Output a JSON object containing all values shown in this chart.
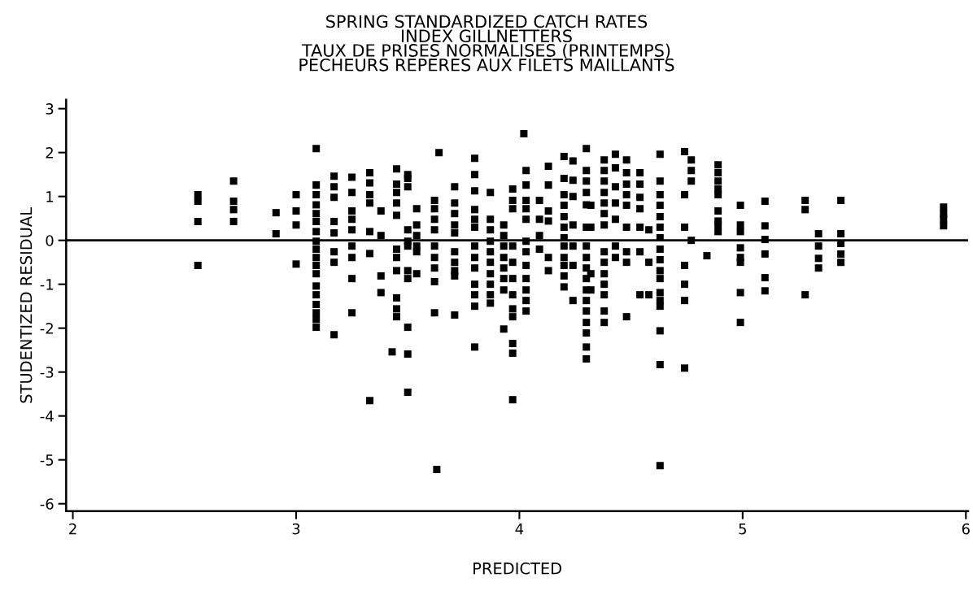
{
  "chart_data": {
    "type": "scatter",
    "title": "SPRING STANDARDIZED CATCH RATES\nINDEX GILLNETTERS\nTAUX DE PRISES NORMALISES (PRINTEMPS)\nPECHEURS REPERES AUX FILETS MAILLANTS",
    "xlabel": "PREDICTED",
    "ylabel": "STUDENTIZED RESIDUAL",
    "xlim": [
      1.97,
      6.01
    ],
    "xticks": [
      2,
      3,
      4,
      5,
      6
    ],
    "ylim": [
      -6.17,
      3.2
    ],
    "yticks": [
      -6,
      -5,
      -4,
      -3,
      -2,
      -1,
      0,
      1,
      2,
      3
    ],
    "grid": false,
    "marker": "square",
    "ref_lines": [
      {
        "axis": "y",
        "value": 0,
        "color": "#000000",
        "line_style": "solid"
      }
    ],
    "series": [
      {
        "color": "#000000",
        "x": [
          2.56,
          2.56,
          2.56,
          2.56,
          2.72,
          2.72,
          2.72,
          2.72,
          2.91,
          2.91,
          3.0,
          3.0,
          3.0,
          3.0,
          3.09,
          3.09,
          3.09,
          3.09,
          3.09,
          3.09,
          3.09,
          3.09,
          3.09,
          3.09,
          3.09,
          3.09,
          3.09,
          3.09,
          3.09,
          3.09,
          3.09,
          3.09,
          3.17,
          3.17,
          3.17,
          3.17,
          3.17,
          3.17,
          3.17,
          3.17,
          3.25,
          3.25,
          3.25,
          3.25,
          3.25,
          3.25,
          3.25,
          3.25,
          3.25,
          3.33,
          3.33,
          3.33,
          3.33,
          3.33,
          3.33,
          3.33,
          3.38,
          3.38,
          3.38,
          3.38,
          3.43,
          3.45,
          3.45,
          3.45,
          3.45,
          3.45,
          3.45,
          3.45,
          3.45,
          3.45,
          3.45,
          3.45,
          3.5,
          3.5,
          3.5,
          3.5,
          3.5,
          3.5,
          3.5,
          3.5,
          3.5,
          3.5,
          3.5,
          3.54,
          3.54,
          3.54,
          3.54,
          3.54,
          3.54,
          3.62,
          3.62,
          3.62,
          3.62,
          3.62,
          3.62,
          3.62,
          3.62,
          3.62,
          3.64,
          3.63,
          3.71,
          3.71,
          3.71,
          3.71,
          3.71,
          3.71,
          3.71,
          3.71,
          3.71,
          3.71,
          3.8,
          3.8,
          3.8,
          3.8,
          3.8,
          3.8,
          3.8,
          3.8,
          3.8,
          3.8,
          3.8,
          3.8,
          3.8,
          3.87,
          3.87,
          3.87,
          3.87,
          3.87,
          3.87,
          3.87,
          3.87,
          3.87,
          3.87,
          3.93,
          3.93,
          3.93,
          3.93,
          3.93,
          3.93,
          3.93,
          3.93,
          3.97,
          3.97,
          3.97,
          3.97,
          3.97,
          3.97,
          3.97,
          3.97,
          3.97,
          3.97,
          3.97,
          3.97,
          4.02,
          4.03,
          4.03,
          4.03,
          4.03,
          4.03,
          4.03,
          4.03,
          4.03,
          4.03,
          4.03,
          4.03,
          4.03,
          4.09,
          4.09,
          4.09,
          4.09,
          4.13,
          4.13,
          4.13,
          4.13,
          4.13,
          4.13,
          4.2,
          4.2,
          4.2,
          4.2,
          4.2,
          4.2,
          4.2,
          4.2,
          4.2,
          4.2,
          4.2,
          4.2,
          4.24,
          4.24,
          4.24,
          4.24,
          4.24,
          4.24,
          4.24,
          4.3,
          4.3,
          4.3,
          4.3,
          4.3,
          4.3,
          4.3,
          4.3,
          4.3,
          4.3,
          4.3,
          4.3,
          4.3,
          4.3,
          4.3,
          4.3,
          4.3,
          4.32,
          4.32,
          4.32,
          4.32,
          4.38,
          4.38,
          4.38,
          4.38,
          4.38,
          4.38,
          4.38,
          4.38,
          4.38,
          4.38,
          4.38,
          4.38,
          4.38,
          4.38,
          4.43,
          4.43,
          4.43,
          4.43,
          4.43,
          4.43,
          4.43,
          4.48,
          4.48,
          4.48,
          4.48,
          4.48,
          4.48,
          4.48,
          4.48,
          4.48,
          4.54,
          4.54,
          4.54,
          4.54,
          4.54,
          4.54,
          4.54,
          4.58,
          4.58,
          4.58,
          4.63,
          4.63,
          4.63,
          4.63,
          4.63,
          4.63,
          4.63,
          4.63,
          4.63,
          4.63,
          4.63,
          4.63,
          4.63,
          4.63,
          4.63,
          4.63,
          4.63,
          4.74,
          4.74,
          4.74,
          4.74,
          4.74,
          4.74,
          4.74,
          4.77,
          4.77,
          4.77,
          4.77,
          4.84,
          4.89,
          4.89,
          4.89,
          4.89,
          4.89,
          4.89,
          4.89,
          4.89,
          4.89,
          4.99,
          4.99,
          4.99,
          4.99,
          4.99,
          4.99,
          4.99,
          4.99,
          5.1,
          5.1,
          5.1,
          5.1,
          5.1,
          5.1,
          5.28,
          5.28,
          5.28,
          5.34,
          5.34,
          5.34,
          5.34,
          5.44,
          5.44,
          5.44,
          5.44,
          5.44,
          5.9,
          5.9,
          5.9,
          5.9
        ],
        "values": [
          1.04,
          0.89,
          0.43,
          -0.57,
          1.35,
          0.89,
          0.7,
          0.43,
          0.63,
          0.15,
          1.04,
          0.67,
          0.35,
          -0.54,
          2.09,
          1.26,
          1.04,
          0.81,
          0.61,
          0.43,
          0.2,
          -0.02,
          -0.2,
          -0.39,
          -0.57,
          -0.76,
          -1.04,
          -1.24,
          -1.46,
          -1.65,
          -1.8,
          -1.98,
          1.46,
          1.22,
          0.98,
          0.43,
          0.17,
          -0.26,
          -0.5,
          -2.15,
          1.44,
          1.09,
          0.67,
          0.48,
          0.24,
          -0.13,
          -0.39,
          -0.87,
          -1.65,
          1.54,
          1.31,
          1.04,
          0.85,
          0.2,
          -0.3,
          -3.65,
          0.67,
          0.11,
          -0.81,
          -1.19,
          -2.54,
          1.63,
          1.28,
          1.09,
          0.85,
          0.57,
          -0.2,
          -0.39,
          -0.69,
          -1.31,
          -1.56,
          -1.74,
          1.5,
          1.41,
          1.22,
          0.24,
          -0.02,
          -0.13,
          -0.69,
          -0.87,
          -1.98,
          -2.59,
          -3.46,
          0.72,
          0.35,
          0.11,
          -0.13,
          -0.26,
          -0.76,
          0.91,
          0.72,
          0.48,
          0.24,
          -0.13,
          -0.39,
          -0.63,
          -0.94,
          -1.65,
          2.0,
          -5.22,
          1.22,
          0.85,
          0.61,
          0.35,
          0.17,
          -0.26,
          -0.5,
          -0.69,
          -0.81,
          -1.7,
          1.87,
          1.5,
          1.13,
          0.7,
          0.48,
          0.3,
          -0.13,
          -0.39,
          -0.63,
          -1.0,
          -1.24,
          -1.5,
          -2.43,
          1.09,
          0.48,
          0.24,
          -0.02,
          -0.26,
          -0.5,
          -0.76,
          -1.0,
          -1.24,
          -1.43,
          0.35,
          0.11,
          -0.13,
          -0.39,
          -0.63,
          -0.87,
          -1.13,
          -2.02,
          1.17,
          0.91,
          0.72,
          -0.13,
          -0.5,
          -0.87,
          -1.24,
          -1.56,
          -1.74,
          -2.35,
          -2.57,
          -3.63,
          2.43,
          1.59,
          1.26,
          0.91,
          0.72,
          0.48,
          -0.02,
          -0.26,
          -0.57,
          -0.87,
          -1.13,
          -1.37,
          -1.61,
          0.91,
          0.48,
          0.11,
          -0.2,
          1.69,
          1.26,
          0.67,
          0.44,
          -0.39,
          -0.69,
          1.91,
          1.41,
          1.04,
          0.8,
          0.54,
          0.3,
          0.06,
          -0.13,
          -0.39,
          -0.57,
          -0.81,
          -1.06,
          1.81,
          1.37,
          1.0,
          0.35,
          -0.13,
          -0.57,
          -1.37,
          2.09,
          1.59,
          1.35,
          1.09,
          0.81,
          0.3,
          -0.13,
          -0.39,
          -0.63,
          -0.87,
          -1.13,
          -1.37,
          -1.61,
          -1.87,
          -2.11,
          -2.43,
          -2.7,
          0.8,
          0.3,
          -0.76,
          -1.13,
          1.83,
          1.59,
          1.35,
          1.09,
          0.85,
          0.61,
          0.35,
          -0.26,
          -0.5,
          -0.76,
          -1.0,
          -1.24,
          -1.61,
          -1.87,
          1.96,
          1.65,
          1.22,
          0.85,
          0.48,
          -0.13,
          -0.39,
          1.83,
          1.54,
          1.28,
          1.04,
          0.8,
          0.3,
          -0.26,
          -0.5,
          -1.74,
          1.54,
          1.28,
          0.98,
          0.72,
          0.3,
          -0.26,
          -1.24,
          0.24,
          -0.5,
          -1.24,
          1.96,
          1.35,
          1.04,
          0.8,
          0.54,
          0.3,
          0.06,
          -0.2,
          -0.44,
          -0.69,
          -0.87,
          -1.19,
          -1.37,
          -1.5,
          -2.06,
          -2.83,
          -5.13,
          2.02,
          1.04,
          0.3,
          -0.57,
          -1.0,
          -1.37,
          -2.91,
          1.83,
          1.59,
          1.35,
          0.0,
          -0.35,
          1.72,
          1.54,
          1.35,
          1.17,
          1.04,
          0.67,
          0.44,
          0.35,
          0.2,
          0.8,
          0.35,
          0.2,
          -0.17,
          -0.39,
          -0.5,
          -1.19,
          -1.87,
          0.89,
          0.33,
          0.02,
          -0.31,
          -0.85,
          -1.15,
          0.91,
          0.7,
          -1.24,
          0.15,
          -0.13,
          -0.41,
          -0.63,
          0.91,
          0.15,
          -0.07,
          -0.31,
          -0.5,
          0.76,
          0.61,
          0.48,
          0.33
        ]
      }
    ]
  }
}
